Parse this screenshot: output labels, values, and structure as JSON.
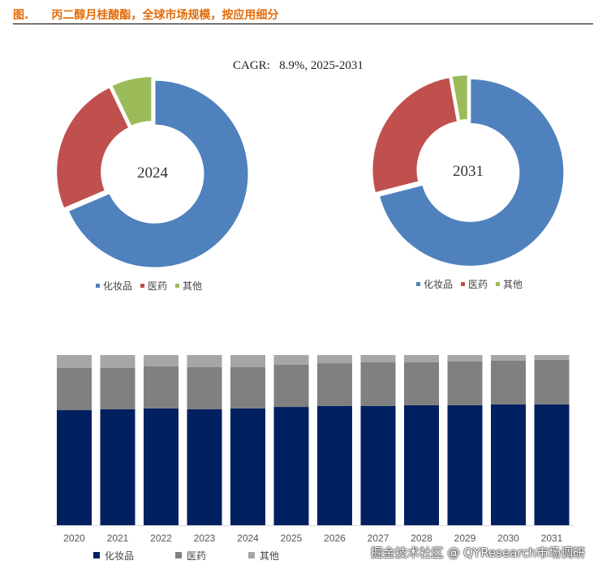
{
  "title": {
    "figure_label": "图.",
    "text": "丙二醇月桂酸酯，全球市场规模，按应用细分"
  },
  "cagr_text": "CAGR:   8.9%, 2025-2031",
  "watermark": "掘金技术社区 @ QYResearch市场调研",
  "chart_data": [
    {
      "type": "pie",
      "title": "2024",
      "donut": true,
      "labels": [
        "化妆品",
        "医药",
        "其他"
      ],
      "values": [
        68.6,
        24.3,
        7.1
      ],
      "colors": [
        "#4f81bd",
        "#c0504d",
        "#9bbb59"
      ],
      "legend": "bottom"
    },
    {
      "type": "pie",
      "title": "2031",
      "donut": true,
      "labels": [
        "化妆品",
        "医药",
        "其他"
      ],
      "values": [
        71.0,
        26.2,
        2.8
      ],
      "colors": [
        "#4f81bd",
        "#c0504d",
        "#9bbb59"
      ],
      "legend": "bottom"
    },
    {
      "type": "bar",
      "stacked": true,
      "percent": true,
      "categories": [
        "2020",
        "2021",
        "2022",
        "2023",
        "2024",
        "2025",
        "2026",
        "2027",
        "2028",
        "2029",
        "2030",
        "2031"
      ],
      "series": [
        {
          "name": "化妆品",
          "color": "#002060",
          "values": [
            67.6,
            68.1,
            68.6,
            68.1,
            68.6,
            69.5,
            70.0,
            70.0,
            70.5,
            70.5,
            71.0,
            71.0
          ]
        },
        {
          "name": "医药",
          "color": "#808080",
          "values": [
            24.8,
            24.3,
            24.8,
            24.8,
            24.3,
            24.8,
            25.2,
            25.7,
            25.2,
            25.7,
            25.7,
            26.2
          ]
        },
        {
          "name": "其他",
          "color": "#a6a6a6",
          "values": [
            7.6,
            7.6,
            6.6,
            7.1,
            7.1,
            5.7,
            4.8,
            4.3,
            4.3,
            3.8,
            3.3,
            2.8
          ]
        }
      ],
      "ylim": [
        0,
        100
      ],
      "legend": "bottom"
    }
  ]
}
